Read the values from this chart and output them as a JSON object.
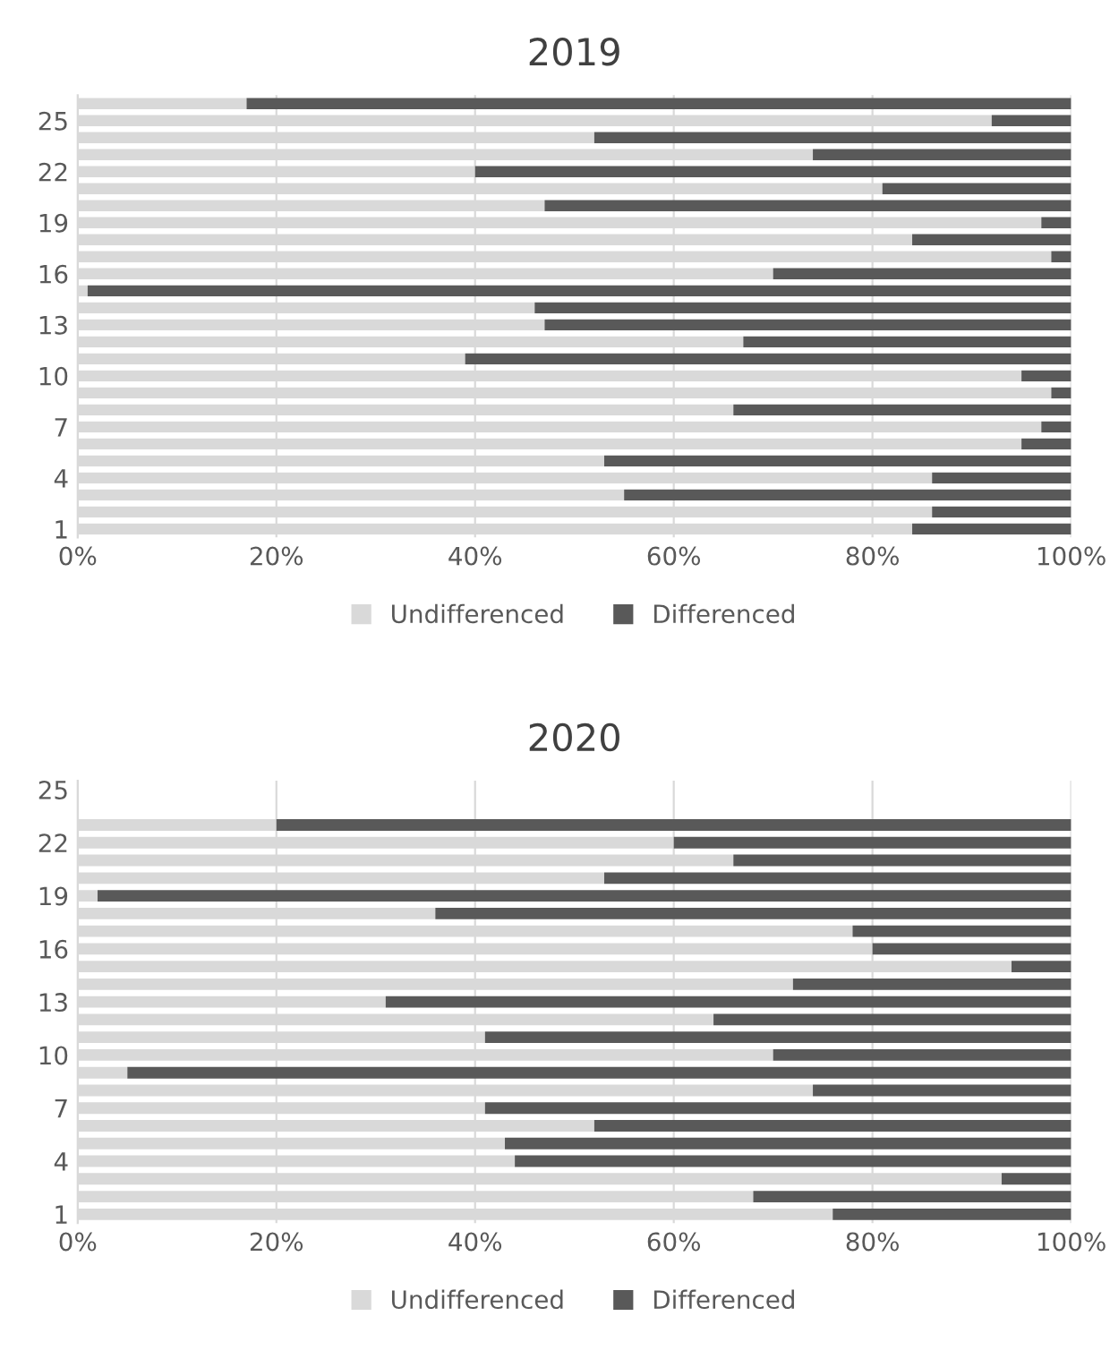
{
  "chart_data": [
    {
      "type": "bar",
      "title": "2019",
      "orientation": "horizontal",
      "stacked": true,
      "grid": "x",
      "legend": "bottom",
      "categories": [
        null,
        "25",
        null,
        null,
        "22",
        null,
        null,
        "19",
        null,
        null,
        "16",
        null,
        null,
        "13",
        null,
        null,
        "10",
        null,
        null,
        "7",
        null,
        null,
        "4",
        null,
        null,
        "1"
      ],
      "xlim": [
        0,
        100
      ],
      "xticks": [
        {
          "value": 0,
          "label": "0%"
        },
        {
          "value": 20,
          "label": "20%"
        },
        {
          "value": 40,
          "label": "40%"
        },
        {
          "value": 60,
          "label": "60%"
        },
        {
          "value": 80,
          "label": "80%"
        },
        {
          "value": 100,
          "label": "100%"
        }
      ],
      "series": [
        {
          "name": "Undifferenced",
          "color": "#d9d9d9",
          "values": [
            17,
            92,
            52,
            74,
            40,
            81,
            47,
            97,
            84,
            98,
            70,
            1,
            46,
            47,
            67,
            39,
            95,
            98,
            66,
            97,
            95,
            53,
            86,
            55,
            86,
            84
          ]
        },
        {
          "name": "Differenced",
          "color": "#595959",
          "values": [
            83,
            8,
            48,
            26,
            60,
            19,
            53,
            3,
            16,
            2,
            30,
            99,
            54,
            53,
            33,
            61,
            5,
            2,
            34,
            3,
            5,
            47,
            14,
            45,
            14,
            16
          ]
        }
      ]
    },
    {
      "type": "bar",
      "title": "2020",
      "orientation": "horizontal",
      "stacked": true,
      "grid": "x",
      "legend": "bottom",
      "categories": [
        "25",
        null,
        null,
        "22",
        null,
        null,
        "19",
        null,
        null,
        "16",
        null,
        null,
        "13",
        null,
        null,
        "10",
        null,
        null,
        "7",
        null,
        null,
        "4",
        null,
        null,
        "1"
      ],
      "xlim": [
        0,
        100
      ],
      "xticks": [
        {
          "value": 0,
          "label": "0%"
        },
        {
          "value": 20,
          "label": "20%"
        },
        {
          "value": 40,
          "label": "40%"
        },
        {
          "value": 60,
          "label": "60%"
        },
        {
          "value": 80,
          "label": "80%"
        },
        {
          "value": 100,
          "label": "100%"
        }
      ],
      "series": [
        {
          "name": "Undifferenced",
          "color": "#d9d9d9",
          "values": [
            null,
            null,
            20,
            60,
            66,
            53,
            2,
            36,
            78,
            80,
            94,
            72,
            31,
            64,
            41,
            70,
            5,
            74,
            41,
            52,
            43,
            44,
            93,
            68,
            76
          ]
        },
        {
          "name": "Differenced",
          "color": "#595959",
          "values": [
            null,
            null,
            80,
            40,
            34,
            47,
            98,
            64,
            22,
            20,
            6,
            28,
            69,
            36,
            59,
            30,
            95,
            26,
            59,
            48,
            57,
            56,
            7,
            32,
            24
          ]
        }
      ]
    }
  ]
}
